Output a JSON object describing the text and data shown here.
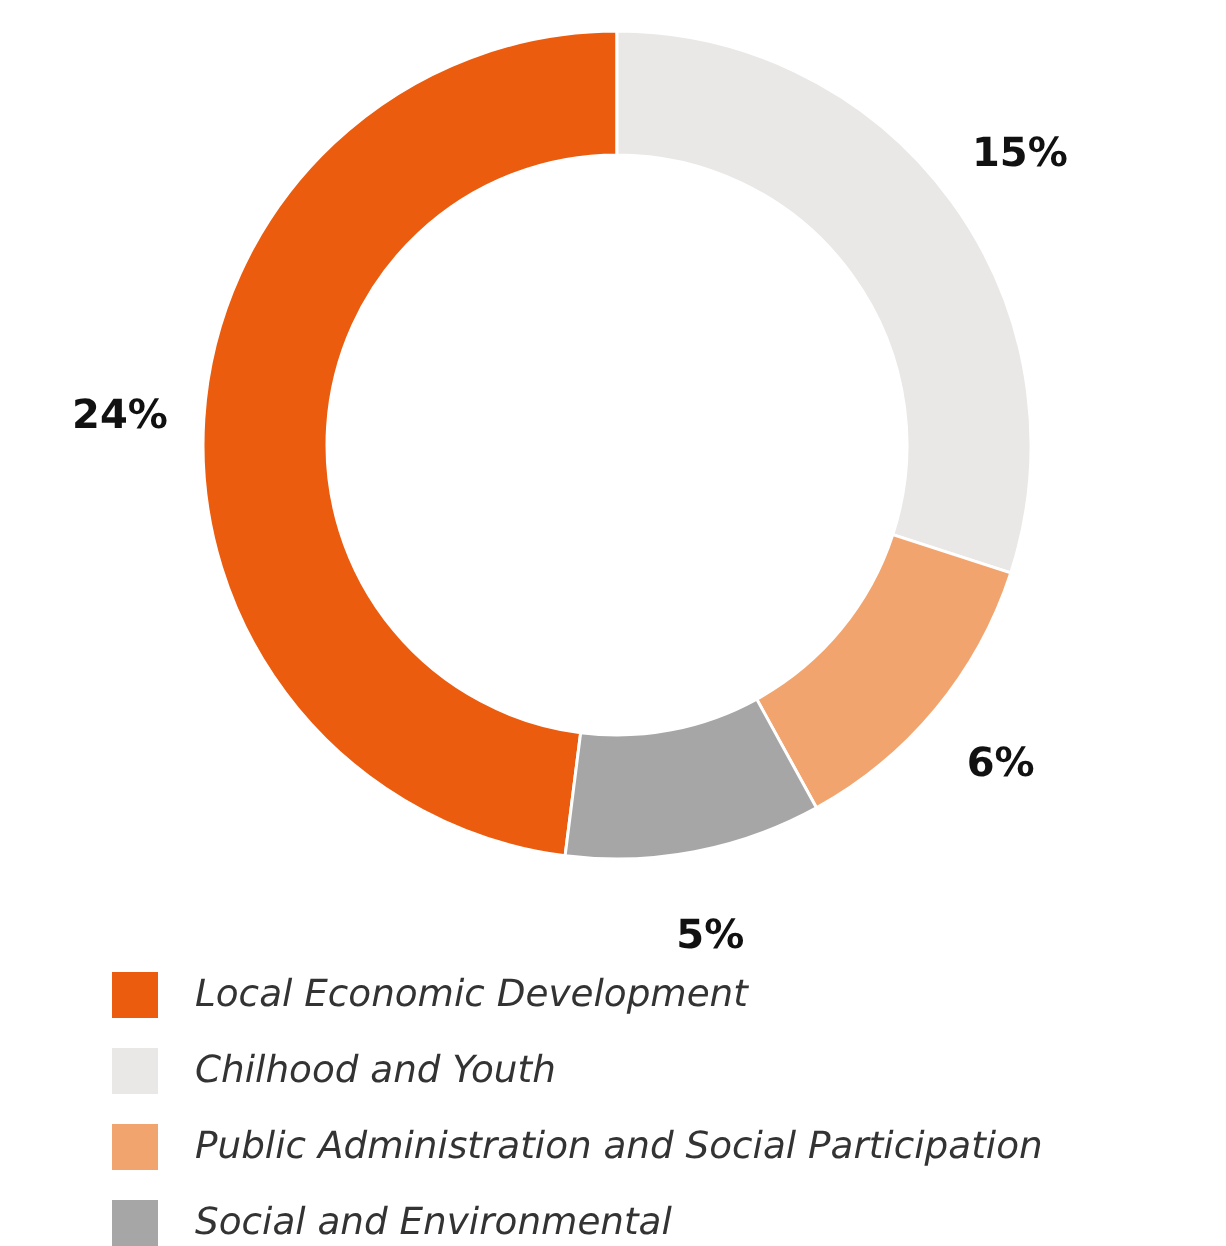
{
  "chart_data": {
    "type": "donut",
    "categories": [
      "Local Economic Development",
      "Chilhood and Youth",
      "Public Administration and Social Participation",
      "Social and Environmental"
    ],
    "values": [
      24,
      15,
      6,
      5
    ],
    "colors": [
      "#eb5c0e",
      "#e9e8e6",
      "#f2a46f",
      "#a6a6a6"
    ],
    "value_labels": [
      "24%",
      "15%",
      "6%",
      "5%"
    ],
    "legend": "bottom left"
  }
}
